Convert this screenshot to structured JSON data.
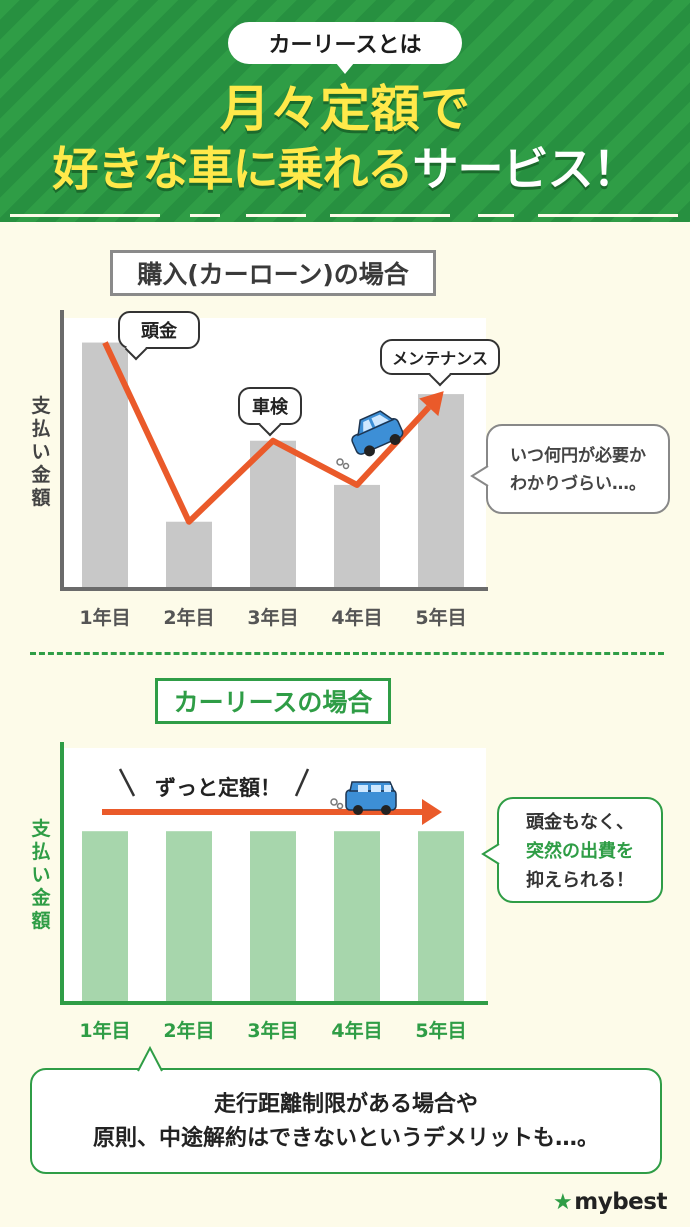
{
  "header": {
    "topic": "カーリースとは",
    "headline_line1": "月々定額で",
    "headline_line2_yellow": "好きな車に乗れる",
    "headline_line2_white": "サービス！"
  },
  "colors": {
    "green": "#2f9d46",
    "orange": "#ea5a2a",
    "gray_bar": "#c8c8c8",
    "green_bar": "#a7d6ac",
    "yellow": "#ffe94a"
  },
  "chart_data": [
    {
      "type": "bar",
      "title": "購入(カーローン)の場合",
      "ylabel": "支払い金額",
      "categories": [
        "1年目",
        "2年目",
        "3年目",
        "4年目",
        "5年目"
      ],
      "values": [
        100,
        27,
        60,
        42,
        79
      ],
      "ylim": [
        0,
        110
      ],
      "annotations": [
        "頭金",
        "車検",
        "メンテナンス"
      ],
      "note": "いつ何円が必要かわかりづらい…。"
    },
    {
      "type": "bar",
      "title": "カーリースの場合",
      "ylabel": "支払い金額",
      "categories": [
        "1年目",
        "2年目",
        "3年目",
        "4年目",
        "5年目"
      ],
      "values": [
        60,
        60,
        60,
        60,
        60
      ],
      "ylim": [
        0,
        100
      ],
      "annotation": "ずっと定額！",
      "note_line1": "頭金もなく、",
      "note_line2": "突然の出費を",
      "note_line3": "抑えられる！"
    }
  ],
  "bottom_note": {
    "line1": "走行距離制限がある場合や",
    "line2": "原則、中途解約はできないというデメリットも…。"
  },
  "logo": {
    "star": "★",
    "text": "mybest"
  },
  "icons": [
    "car-icon",
    "star-icon"
  ]
}
